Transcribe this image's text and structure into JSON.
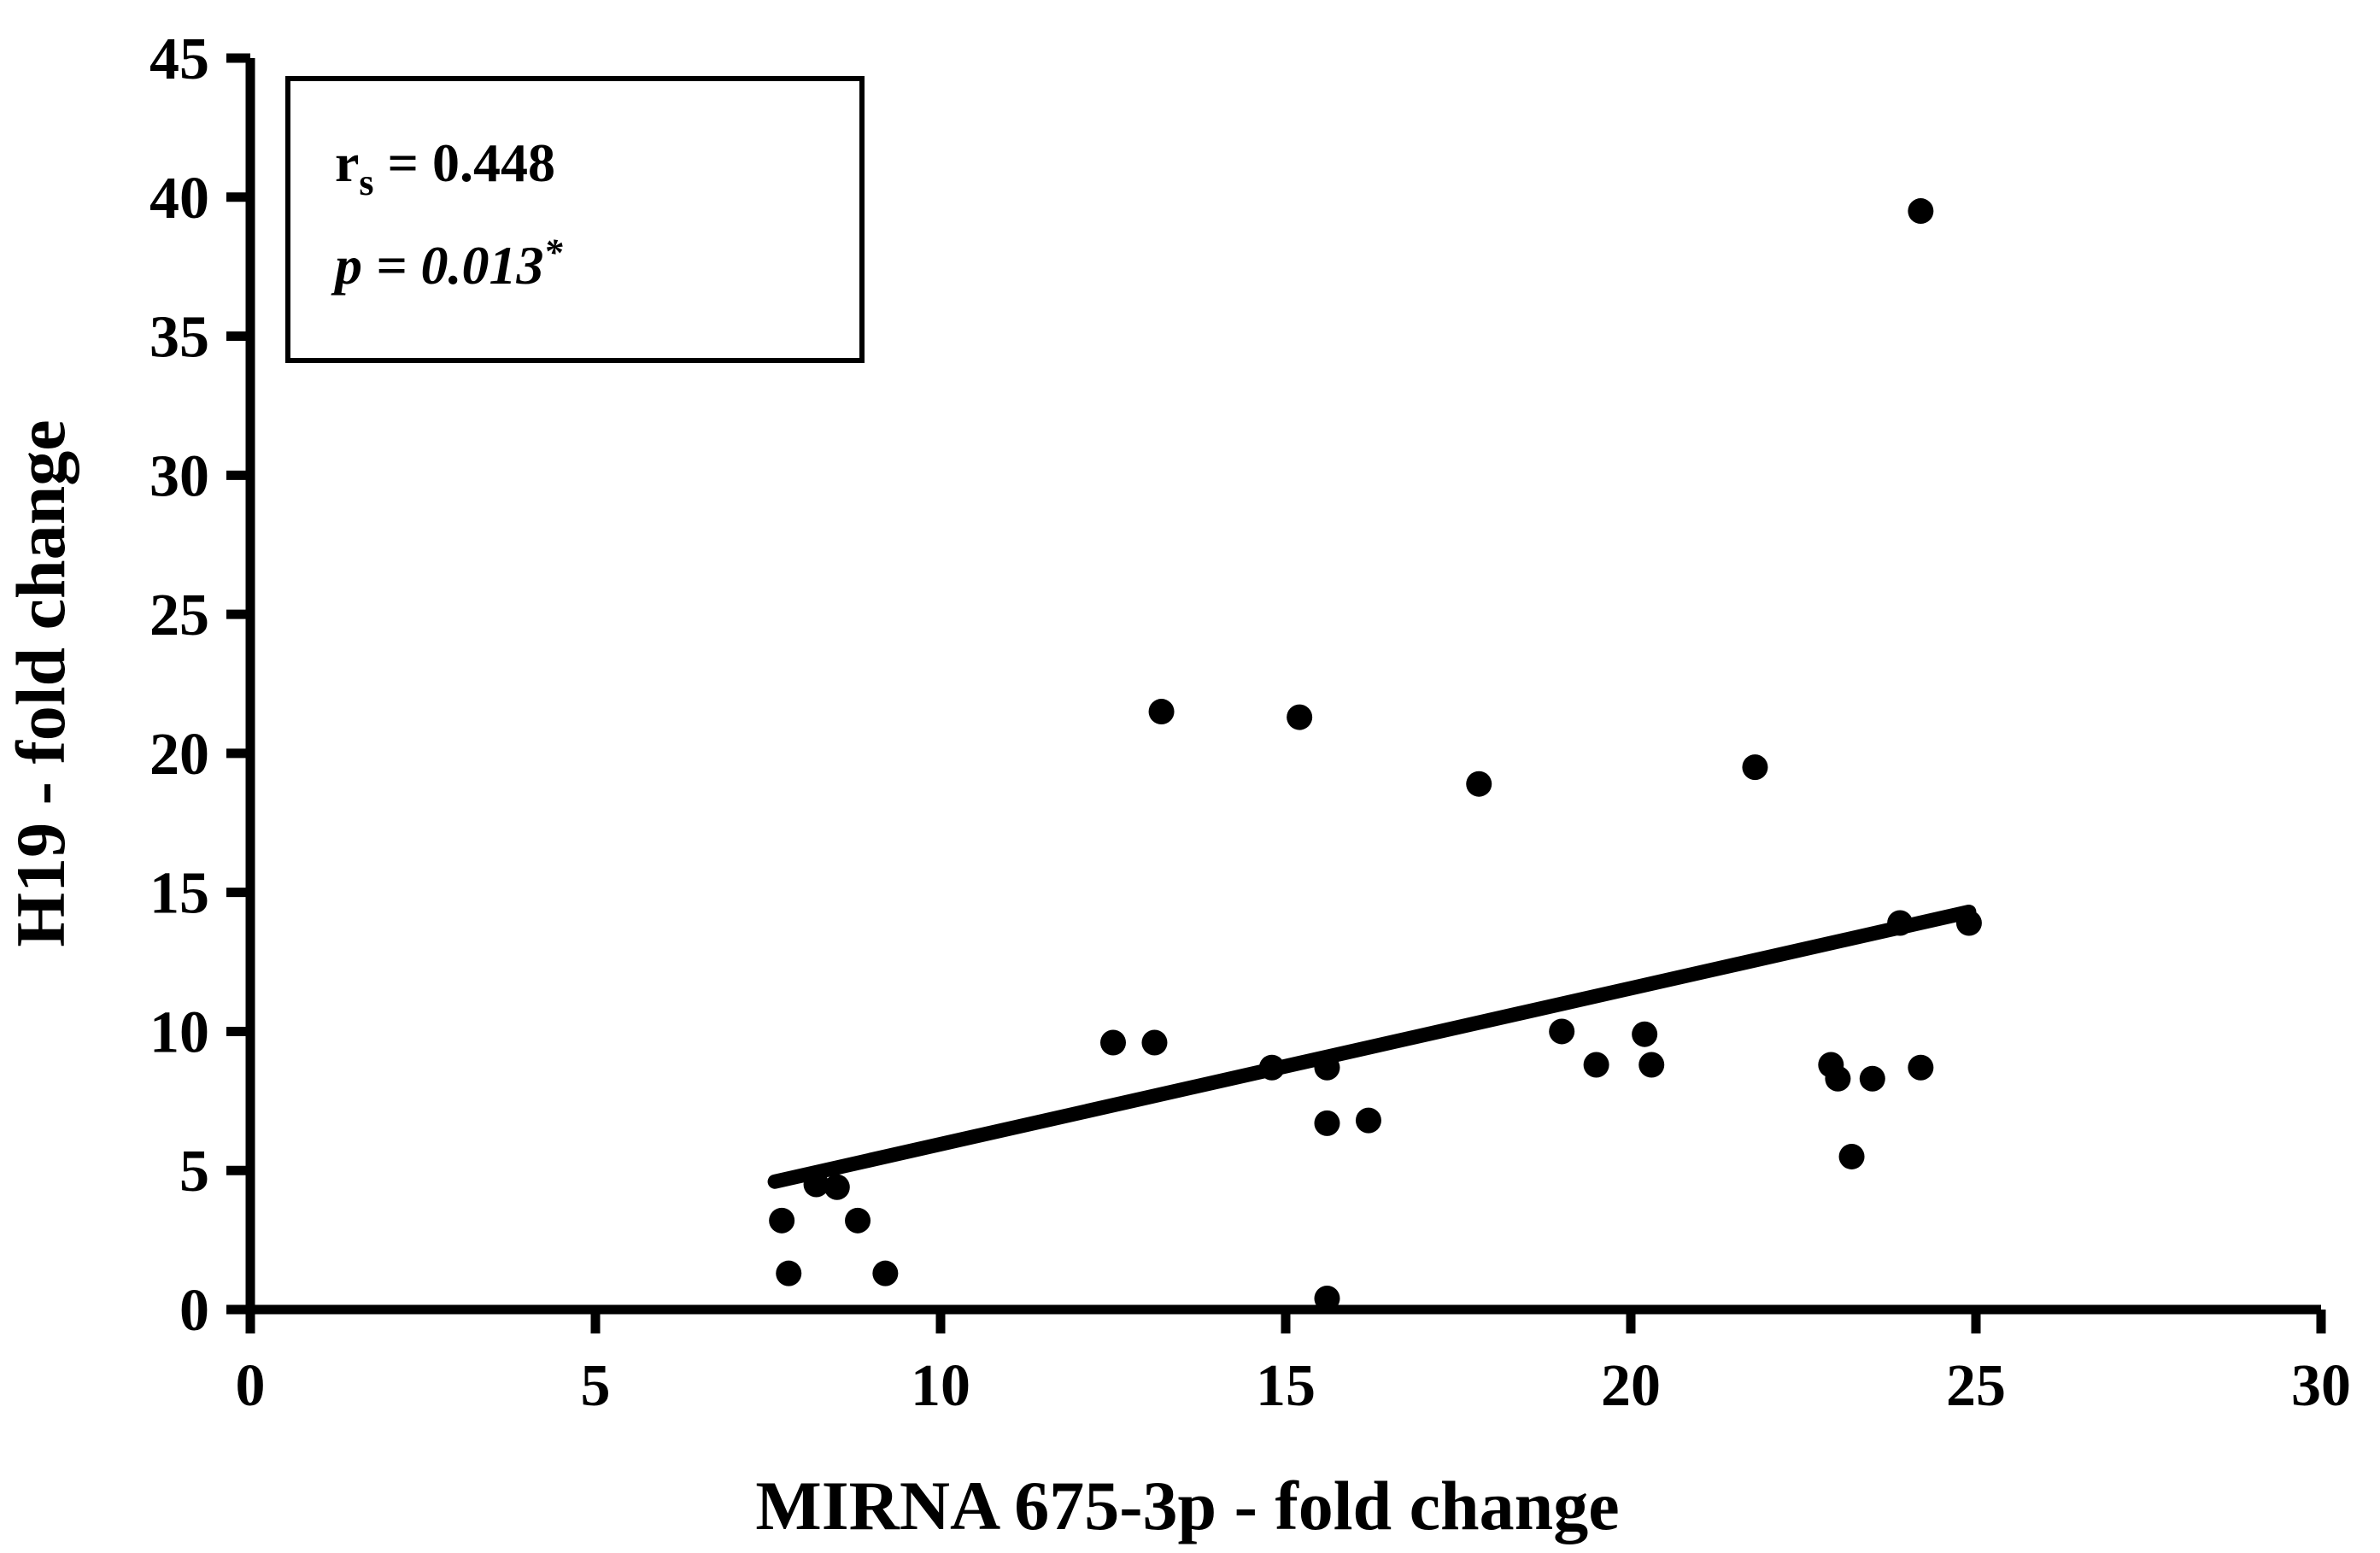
{
  "chart_data": {
    "type": "scatter",
    "title": "",
    "xlabel": "MIRNA 675-3p - fold change",
    "ylabel": "H19 - fold change",
    "xlim": [
      0,
      30
    ],
    "ylim": [
      0,
      45
    ],
    "xticks": [
      0,
      5,
      10,
      15,
      20,
      25,
      30
    ],
    "yticks": [
      0,
      5,
      10,
      15,
      20,
      25,
      30,
      35,
      40,
      45
    ],
    "grid": false,
    "legend": "none",
    "marker_color": "#000000",
    "line_color": "#000000",
    "background_color": "#ffffff",
    "points": [
      [
        7.7,
        3.2
      ],
      [
        7.8,
        1.3
      ],
      [
        8.2,
        4.5
      ],
      [
        8.5,
        4.4
      ],
      [
        8.8,
        3.2
      ],
      [
        9.2,
        1.3
      ],
      [
        12.5,
        9.6
      ],
      [
        13.1,
        9.6
      ],
      [
        13.2,
        21.5
      ],
      [
        15.2,
        21.3
      ],
      [
        14.8,
        8.7
      ],
      [
        15.6,
        8.7
      ],
      [
        15.6,
        6.7
      ],
      [
        16.2,
        6.8
      ],
      [
        15.6,
        0.4
      ],
      [
        17.8,
        18.9
      ],
      [
        19.0,
        10.0
      ],
      [
        19.5,
        8.8
      ],
      [
        20.2,
        9.9
      ],
      [
        20.3,
        8.8
      ],
      [
        21.8,
        19.5
      ],
      [
        22.9,
        8.8
      ],
      [
        23.0,
        8.3
      ],
      [
        23.5,
        8.3
      ],
      [
        24.2,
        8.7
      ],
      [
        23.2,
        5.5
      ],
      [
        23.9,
        13.9
      ],
      [
        24.9,
        13.9
      ],
      [
        24.2,
        39.5
      ]
    ],
    "trendline": {
      "x1": 7.6,
      "y1": 4.6,
      "x2": 24.9,
      "y2": 14.3
    },
    "annotation": {
      "r_symbol": "r",
      "r_subscript": "s",
      "r_equals": " = 0.448",
      "p_text": "p = 0.013",
      "p_superscript": "*"
    }
  }
}
